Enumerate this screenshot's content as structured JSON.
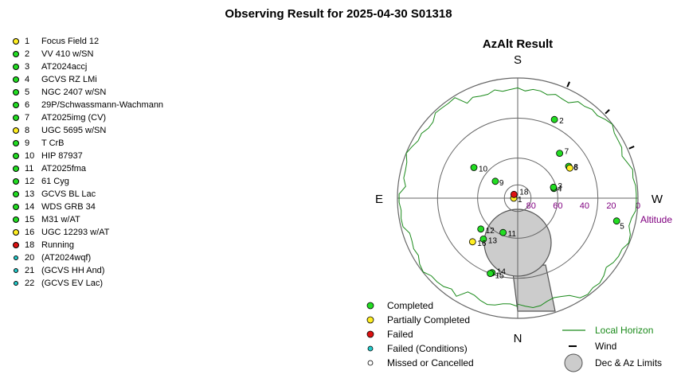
{
  "title": "Observing Result for 2025-04-30 S01318",
  "targets": [
    {
      "num": "1",
      "name": "Focus Field 12",
      "status": "partial"
    },
    {
      "num": "2",
      "name": "VV 410 w/SN",
      "status": "completed"
    },
    {
      "num": "3",
      "name": "AT2024accj",
      "status": "completed"
    },
    {
      "num": "4",
      "name": "GCVS RZ LMi",
      "status": "completed"
    },
    {
      "num": "5",
      "name": "NGC 2407 w/SN",
      "status": "completed"
    },
    {
      "num": "6",
      "name": "29P/Schwassmann-Wachmann",
      "status": "completed"
    },
    {
      "num": "7",
      "name": "AT2025img (CV)",
      "status": "completed"
    },
    {
      "num": "8",
      "name": "UGC 5695 w/SN",
      "status": "partial"
    },
    {
      "num": "9",
      "name": "T CrB",
      "status": "completed"
    },
    {
      "num": "10",
      "name": "HIP 87937",
      "status": "completed"
    },
    {
      "num": "11",
      "name": "AT2025fma",
      "status": "completed"
    },
    {
      "num": "12",
      "name": "61 Cyg",
      "status": "completed"
    },
    {
      "num": "13",
      "name": "GCVS BL Lac",
      "status": "completed"
    },
    {
      "num": "14",
      "name": "WDS GRB 34",
      "status": "completed"
    },
    {
      "num": "15",
      "name": "M31 w/AT",
      "status": "completed"
    },
    {
      "num": "16",
      "name": "UGC 12293 w/AT",
      "status": "partial"
    },
    {
      "num": "18",
      "name": "Running",
      "status": "failed"
    },
    {
      "num": "20",
      "name": " (AT2024wqf)",
      "status": "failed_conditions"
    },
    {
      "num": "21",
      "name": " (GCVS HH And)",
      "status": "failed_conditions"
    },
    {
      "num": "22",
      "name": " (GCVS EV Lac)",
      "status": "failed_conditions"
    }
  ],
  "status_colors": {
    "completed": "#22dd22",
    "partial": "#ffee22",
    "failed": "#dd1111",
    "failed_conditions": "#22cccc",
    "missed": "#ffffff"
  },
  "azalt": {
    "title": "AzAlt Result",
    "compass": {
      "S": "S",
      "N": "N",
      "E": "E",
      "W": "W"
    },
    "altitude_label": "Altitude",
    "alt_ticks": [
      "80",
      "60",
      "40",
      "20",
      "0"
    ],
    "points": [
      {
        "label": "1",
        "status": "partial",
        "alt": 87,
        "az": 90
      },
      {
        "label": "18",
        "status": "failed",
        "alt": 86,
        "az": 135
      },
      {
        "label": "2",
        "status": "completed",
        "alt": 25,
        "az": 205
      },
      {
        "label": "3",
        "status": "completed",
        "alt": 62,
        "az": 255
      },
      {
        "label": "4",
        "status": "completed",
        "alt": 62,
        "az": 253
      },
      {
        "label": "5",
        "status": "completed",
        "alt": 14,
        "az": 283
      },
      {
        "label": "6",
        "status": "completed",
        "alt": 45,
        "az": 238
      },
      {
        "label": "7",
        "status": "completed",
        "alt": 44,
        "az": 223
      },
      {
        "label": "8",
        "status": "partial",
        "alt": 45,
        "az": 240
      },
      {
        "label": "9",
        "status": "completed",
        "alt": 69,
        "az": 127
      },
      {
        "label": "10",
        "status": "completed",
        "alt": 50,
        "az": 125
      },
      {
        "label": "11",
        "status": "completed",
        "alt": 62,
        "az": 23
      },
      {
        "label": "12",
        "status": "completed",
        "alt": 54,
        "az": 50
      },
      {
        "label": "13",
        "status": "completed",
        "alt": 50,
        "az": 40
      },
      {
        "label": "14",
        "status": "completed",
        "alt": 31,
        "az": 19
      },
      {
        "label": "15",
        "status": "completed",
        "alt": 30,
        "az": 20
      },
      {
        "label": "16",
        "status": "partial",
        "alt": 43,
        "az": 46
      }
    ],
    "wind_ticks_az": [
      204,
      226,
      246
    ],
    "legend": {
      "completed": "Completed",
      "partial": "Partially Completed",
      "failed": "Failed",
      "failed_conditions": "Failed (Conditions)",
      "missed": "Missed or Cancelled",
      "local_horizon": "Local Horizon",
      "wind": "Wind",
      "limits": "Dec & Az Limits"
    },
    "horizon_color": "#1a8a1a",
    "altitude_color": "#800080",
    "limits_color": "#cccccc"
  }
}
